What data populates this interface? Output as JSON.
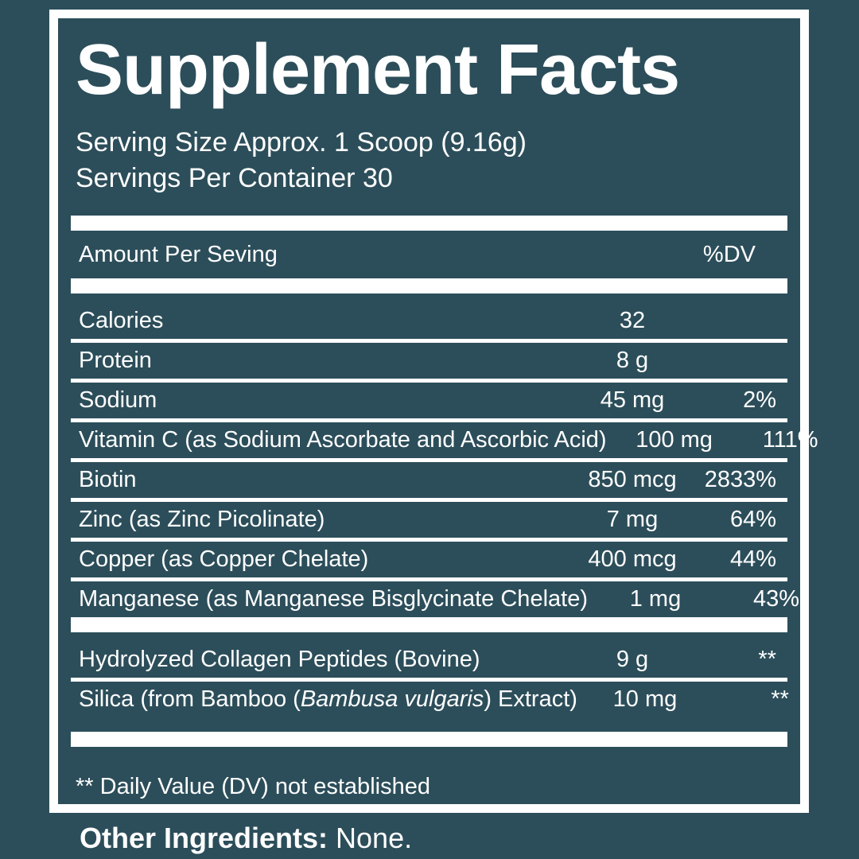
{
  "colors": {
    "background": "#2C4E5A",
    "panel_border": "#FFFFFF",
    "text": "#FFFFFF",
    "divider": "#FFFFFF"
  },
  "panel": {
    "title": "Supplement Facts",
    "serving_size": "Serving Size Approx. 1 Scoop (9.16g)",
    "servings_per_container": "Servings Per Container 30",
    "header": {
      "amount_label": "Amount Per Seving",
      "dv_label": "%DV"
    },
    "rows": [
      {
        "name": "Calories",
        "amount": "32",
        "dv": ""
      },
      {
        "name": "Protein",
        "amount": "8 g",
        "dv": ""
      },
      {
        "name": "Sodium",
        "amount": "45 mg",
        "dv": "2%"
      },
      {
        "name": "Vitamin C (as Sodium Ascorbate and Ascorbic Acid)",
        "amount": "100 mg",
        "dv": "111%"
      },
      {
        "name": "Biotin",
        "amount": "850 mcg",
        "dv": "2833%"
      },
      {
        "name": "Zinc (as Zinc Picolinate)",
        "amount": "7 mg",
        "dv": "64%"
      },
      {
        "name": "Copper (as Copper Chelate)",
        "amount": "400 mcg",
        "dv": "44%"
      },
      {
        "name": "Manganese (as Manganese Bisglycinate Chelate)",
        "amount": "1 mg",
        "dv": "43%"
      }
    ],
    "rows2": [
      {
        "name": "Hydrolyzed Collagen Peptides (Bovine)",
        "amount": "9 g",
        "dv": "**"
      },
      {
        "name_pre": "Silica (from Bamboo (",
        "name_italic": "Bambusa vulgaris",
        "name_post": ") Extract)",
        "amount": "10 mg",
        "dv": "**"
      }
    ],
    "footnote": "** Daily Value (DV) not established"
  },
  "other_ingredients": {
    "label": "Other Ingredients:",
    "value": " None."
  }
}
